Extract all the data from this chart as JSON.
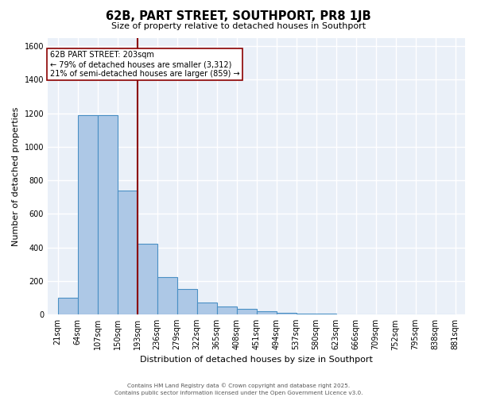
{
  "title": "62B, PART STREET, SOUTHPORT, PR8 1JB",
  "subtitle": "Size of property relative to detached houses in Southport",
  "xlabel": "Distribution of detached houses by size in Southport",
  "ylabel": "Number of detached properties",
  "bar_color": "#adc8e6",
  "bar_edge_color": "#4a90c4",
  "background_color": "#eaf0f8",
  "grid_color": "#ffffff",
  "bin_edges": [
    21,
    64,
    107,
    150,
    193,
    236,
    279,
    322,
    365,
    408,
    451,
    494,
    537,
    580,
    623,
    666,
    709,
    752,
    795,
    838,
    881
  ],
  "tick_labels": [
    "21sqm",
    "64sqm",
    "107sqm",
    "150sqm",
    "193sqm",
    "236sqm",
    "279sqm",
    "322sqm",
    "365sqm",
    "408sqm",
    "451sqm",
    "494sqm",
    "537sqm",
    "580sqm",
    "623sqm",
    "666sqm",
    "709sqm",
    "752sqm",
    "795sqm",
    "838sqm",
    "881sqm"
  ],
  "values": [
    100,
    1190,
    1190,
    740,
    420,
    225,
    150,
    70,
    50,
    35,
    20,
    10,
    5,
    5,
    2,
    2,
    1,
    1,
    1,
    1
  ],
  "red_line_index": 4,
  "annotation_title": "62B PART STREET: 203sqm",
  "annotation_line1": "← 79% of detached houses are smaller (3,312)",
  "annotation_line2": "21% of semi-detached houses are larger (859) →",
  "ylim": [
    0,
    1650
  ],
  "yticks": [
    0,
    200,
    400,
    600,
    800,
    1000,
    1200,
    1400,
    1600
  ],
  "footer1": "Contains HM Land Registry data © Crown copyright and database right 2025.",
  "footer2": "Contains public sector information licensed under the Open Government Licence v3.0."
}
